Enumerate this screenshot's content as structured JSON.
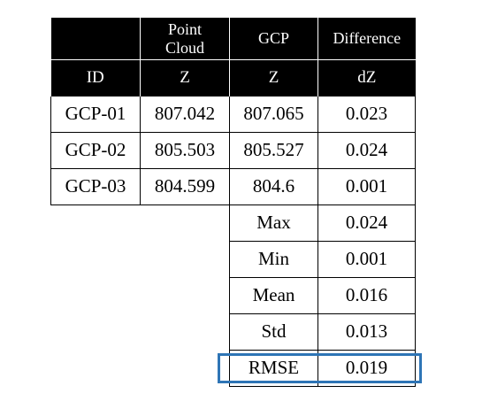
{
  "table": {
    "header_row1": [
      "",
      "Point Cloud",
      "GCP",
      "Difference"
    ],
    "header_row2": [
      "ID",
      "Z",
      "Z",
      "dZ"
    ],
    "rows": [
      [
        "GCP-01",
        "807.042",
        "807.065",
        "0.023"
      ],
      [
        "GCP-02",
        "805.503",
        "805.527",
        "0.024"
      ],
      [
        "GCP-03",
        "804.599",
        "804.6",
        "0.001"
      ]
    ],
    "stats": [
      [
        "Max",
        "0.024"
      ],
      [
        "Min",
        "0.001"
      ],
      [
        "Mean",
        "0.016"
      ],
      [
        "Std",
        "0.013"
      ],
      [
        "RMSE",
        "0.019"
      ]
    ]
  },
  "highlight": {
    "row": "RMSE",
    "color": "#2e75b6"
  }
}
